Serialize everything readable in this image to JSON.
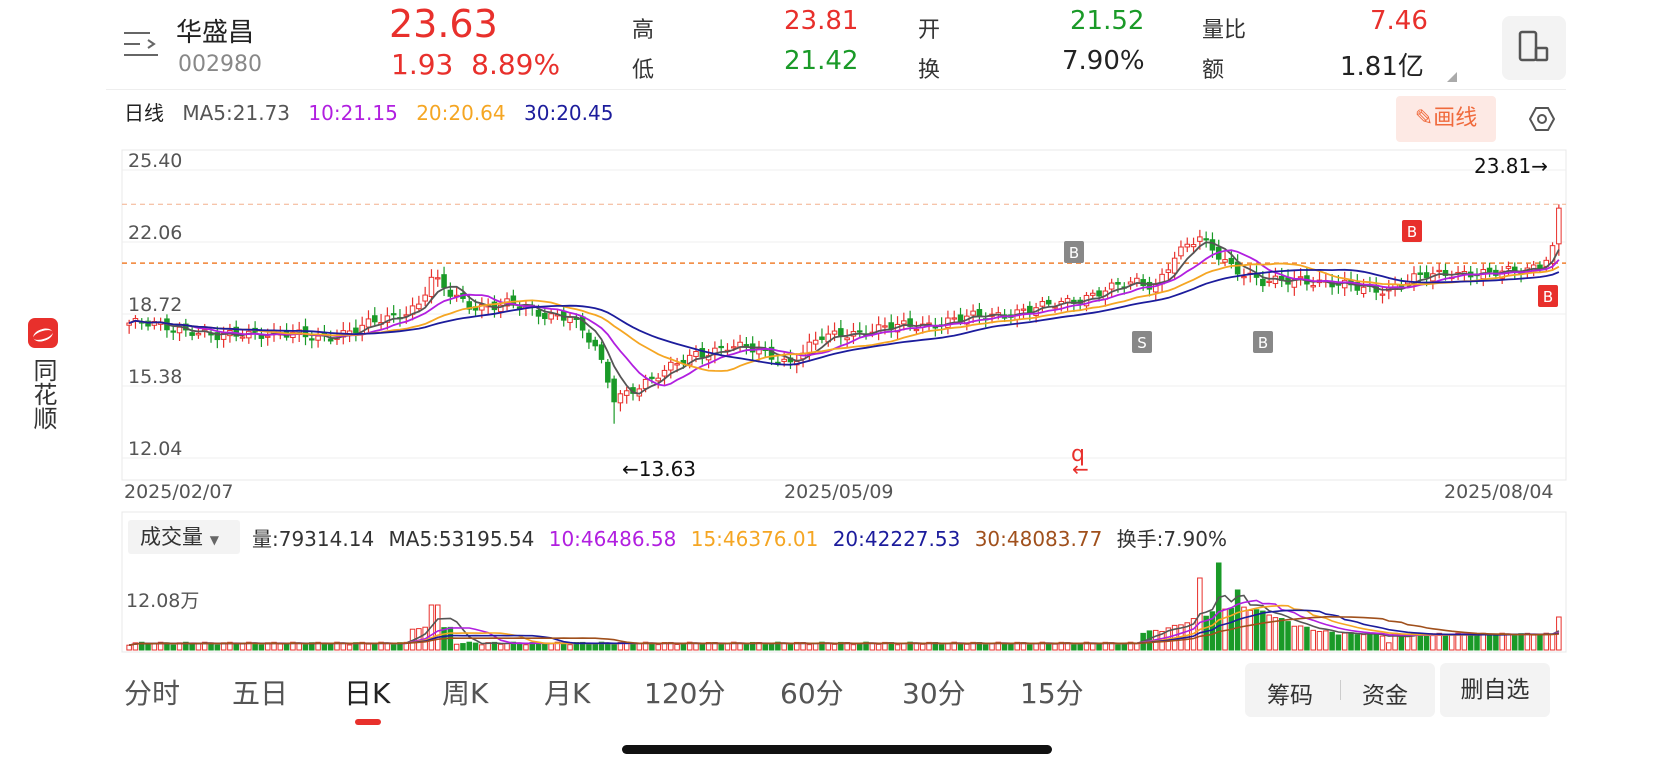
{
  "sidebar": {
    "brand_text": "同花顺",
    "logo_icon": "tonghuashun-logo-icon"
  },
  "header": {
    "name": "华盛昌",
    "code": "002980",
    "price": "23.63",
    "change": "1.93",
    "change_pct": "8.89%",
    "stats": [
      {
        "label": "高",
        "value": "23.81",
        "color": "#e8302c"
      },
      {
        "label": "低",
        "value": "21.42",
        "color": "#1a9a28"
      },
      {
        "label": "开",
        "value": "21.52",
        "color": "#1a9a28"
      },
      {
        "label": "换",
        "value": "7.90%",
        "color": "#222222"
      },
      {
        "label": "量比",
        "value": "7.46",
        "color": "#e8302c"
      },
      {
        "label": "额",
        "value": "1.81亿",
        "color": "#222222"
      }
    ]
  },
  "ma_legend": {
    "period": "日线",
    "ma5": "MA5:21.73",
    "ma10": "10:21.15",
    "ma20": "20:20.64",
    "ma30": "30:20.45"
  },
  "toolbar": {
    "draw_label": "画线"
  },
  "price_chart": {
    "y_labels": [
      "25.40",
      "22.06",
      "18.72",
      "15.38",
      "12.04"
    ],
    "y_min": 12.04,
    "y_max": 25.4,
    "high_label": "23.81→",
    "low_label": "←13.63",
    "ref_line": 21.08,
    "high_line": 23.81,
    "dates": [
      "2025/02/07",
      "2025/05/09",
      "2025/08/04"
    ],
    "markers": [
      "B",
      "S",
      "B",
      "B",
      "B"
    ],
    "event_glyph": "q"
  },
  "volume": {
    "selector": "成交量",
    "vol": "量:79314.14",
    "ma5": "MA5:53195.54",
    "ma10": "10:46486.58",
    "ma15": "15:46376.01",
    "ma20": "20:42227.53",
    "ma30": "30:48083.77",
    "turnover": "换手:7.90%",
    "axis_label": "12.08万"
  },
  "tabs": [
    "分时",
    "五日",
    "日K",
    "周K",
    "月K",
    "120分",
    "60分",
    "30分",
    "15分"
  ],
  "active_tab": "日K",
  "actions": {
    "chips": "筹码",
    "funds": "资金",
    "remove": "删自选"
  },
  "colors": {
    "up": "#e8302c",
    "down": "#1a9a28",
    "ma5": "#555555",
    "ma10": "#b11fe0",
    "ma20": "#f5a623",
    "ma30": "#1c1c9c",
    "ma30_vol": "#a0501c"
  },
  "chart_data": {
    "type": "candlestick",
    "x_range": [
      "2025/02/07",
      "2025/08/04"
    ],
    "ylim": [
      12.04,
      25.4
    ],
    "close_anchors": [
      [
        0,
        18.3
      ],
      [
        10,
        18.0
      ],
      [
        14,
        17.6
      ],
      [
        20,
        17.9
      ],
      [
        30,
        17.6
      ],
      [
        36,
        18.0
      ],
      [
        42,
        18.6
      ],
      [
        46,
        19.2
      ],
      [
        48,
        20.4
      ],
      [
        51,
        19.6
      ],
      [
        54,
        19.1
      ],
      [
        60,
        19.2
      ],
      [
        65,
        18.7
      ],
      [
        70,
        18.7
      ],
      [
        74,
        17.1
      ],
      [
        77,
        14.8
      ],
      [
        80,
        15.3
      ],
      [
        85,
        16.0
      ],
      [
        90,
        16.9
      ],
      [
        95,
        17.2
      ],
      [
        100,
        17.0
      ],
      [
        105,
        16.5
      ],
      [
        110,
        17.6
      ],
      [
        115,
        17.9
      ],
      [
        125,
        18.2
      ],
      [
        135,
        18.6
      ],
      [
        145,
        19.0
      ],
      [
        150,
        19.4
      ],
      [
        155,
        19.8
      ],
      [
        160,
        20.2
      ],
      [
        163,
        20.1
      ],
      [
        166,
        21.4
      ],
      [
        170,
        22.2
      ],
      [
        173,
        21.5
      ],
      [
        176,
        20.8
      ],
      [
        180,
        20.1
      ],
      [
        186,
        20.4
      ],
      [
        192,
        20.0
      ],
      [
        200,
        19.9
      ],
      [
        206,
        20.5
      ],
      [
        210,
        20.7
      ],
      [
        216,
        20.5
      ],
      [
        220,
        20.8
      ],
      [
        224,
        21.0
      ],
      [
        226,
        21.7
      ],
      [
        227,
        23.63
      ]
    ],
    "volume_axis_label": "12.08万"
  }
}
